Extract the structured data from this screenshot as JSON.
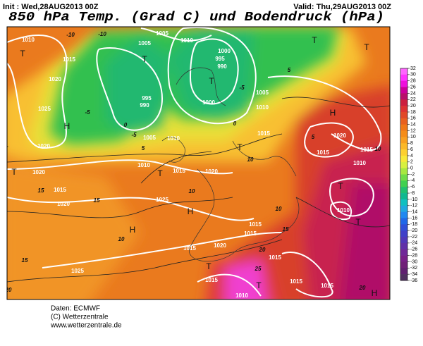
{
  "header": {
    "init": "Init : Wed,28AUG2013 00Z",
    "valid": "Valid: Thu,29AUG2013 00Z",
    "title": "850 hPa Temp. (Grad C) und Bodendruck (hPa)"
  },
  "map": {
    "labels": [
      "1010",
      "1005",
      "1005",
      "1010",
      "1000",
      "995",
      "990",
      "1015",
      "1020",
      "1025",
      "1020",
      "995",
      "990",
      "1000",
      "1005",
      "1010",
      "1005",
      "1010",
      "1015",
      "1015",
      "1020",
      "1020",
      "1010",
      "1015",
      "1020",
      "1015",
      "1020",
      "1025",
      "1015",
      "1015",
      "1020",
      "1015",
      "1025",
      "1015",
      "1015",
      "1015",
      "1015",
      "1010",
      "1010",
      "1015",
      "1010",
      "T",
      "T",
      "T",
      "T",
      "T",
      "H",
      "T",
      "H",
      "T",
      "T",
      "H",
      "H",
      "T",
      "T",
      "T",
      "T",
      "H",
      "T",
      "-10",
      "-10",
      "-5",
      "-5",
      "0",
      "5",
      "0",
      "-5",
      "5",
      "10",
      "10",
      "15",
      "15",
      "10",
      "15",
      "20",
      "20",
      "25",
      "20",
      "10",
      "15",
      "5",
      "10"
    ]
  },
  "colorbar": {
    "labels": [
      32,
      30,
      28,
      26,
      24,
      22,
      20,
      18,
      16,
      14,
      12,
      10,
      8,
      6,
      4,
      2,
      0,
      -2,
      -4,
      -6,
      -8,
      -10,
      -12,
      -14,
      -16,
      -18,
      -20,
      -22,
      -24,
      -26,
      -28,
      -30,
      -32,
      -34,
      -36
    ],
    "colors": [
      "#ff66ff",
      "#ff33ff",
      "#ee10dd",
      "#cc0099",
      "#b8106a",
      "#cc2040",
      "#dd3333",
      "#e04828",
      "#e86020",
      "#f07818",
      "#f58c18",
      "#f8a020",
      "#fbb828",
      "#fdd030",
      "#f8e838",
      "#d8f040",
      "#a8e840",
      "#70dc48",
      "#40d050",
      "#20c070",
      "#10b890",
      "#10c0c0",
      "#20a8e0",
      "#2088f0",
      "#2068e8",
      "#3050d8",
      "#4040c8",
      "#5038b8",
      "#6030a8",
      "#702898",
      "#782088",
      "#702078",
      "#602070",
      "#503060"
    ]
  },
  "footer": {
    "lines": [
      "Daten: ECMWF",
      "(C) Wetterzentrale",
      "www.wetterzentrale.de"
    ]
  }
}
